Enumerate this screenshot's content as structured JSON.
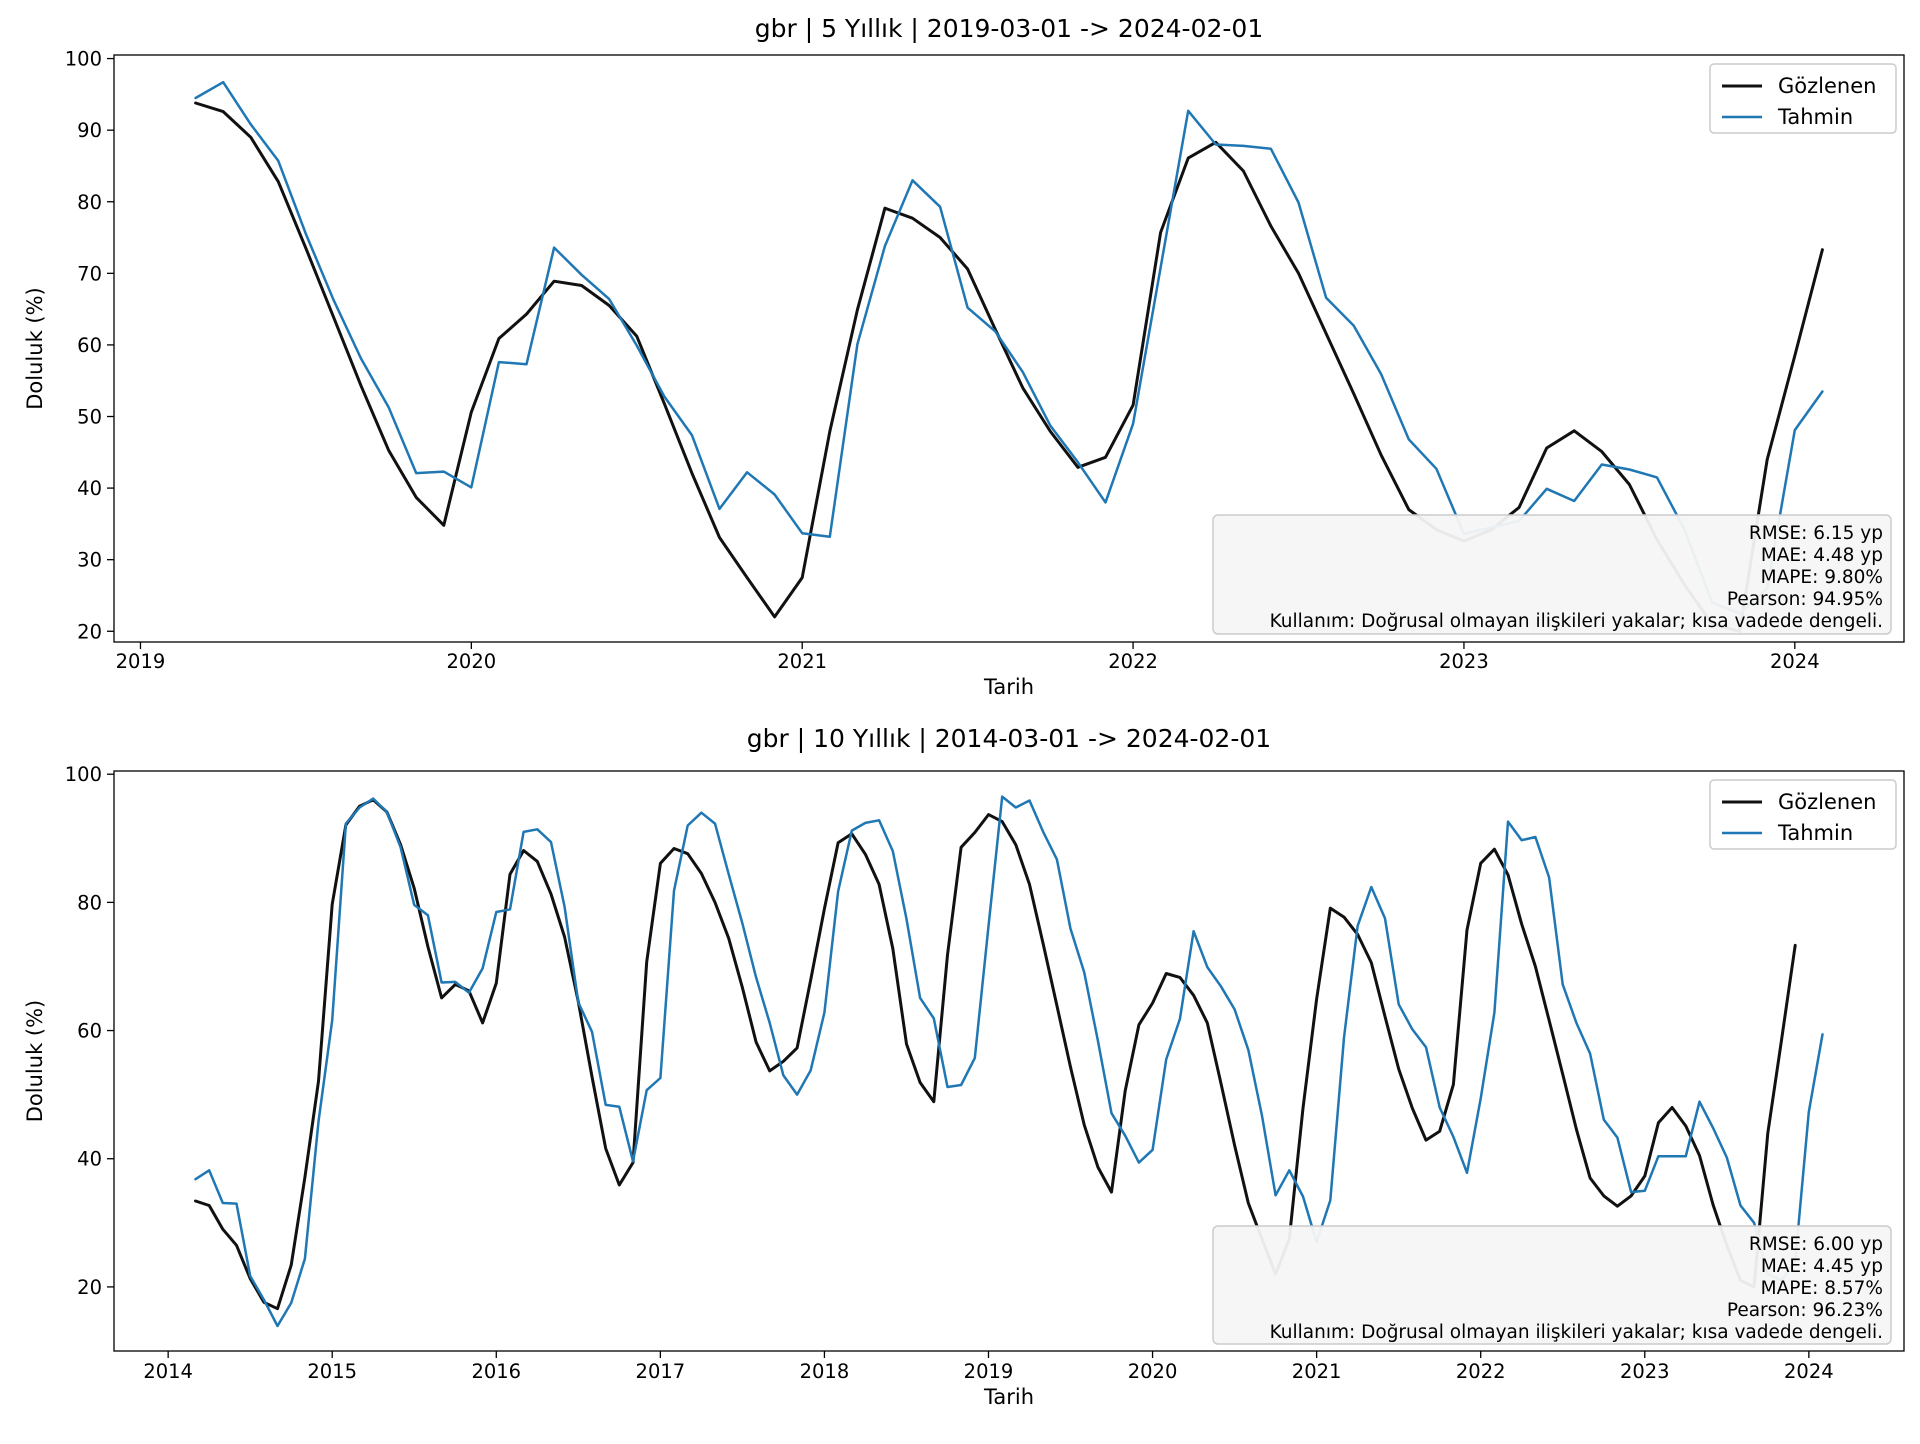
{
  "chart_data": [
    {
      "type": "line",
      "title": "gbr | 5 Yıllık | 2019-03-01 -> 2024-02-01",
      "xlabel": "Tarih",
      "ylabel": "Doluluk (%)",
      "start": "2019-03-01",
      "xlim": [
        2018.92,
        2024.33
      ],
      "ylim": [
        18.5,
        100.5
      ],
      "xticks": [
        2019,
        2020,
        2021,
        2022,
        2023,
        2024
      ],
      "xtick_labels": [
        "2019",
        "2020",
        "2021",
        "2022",
        "2023",
        "2024"
      ],
      "yticks": [
        20,
        30,
        40,
        50,
        60,
        70,
        80,
        90,
        100
      ],
      "ytick_labels": [
        "20",
        "30",
        "40",
        "50",
        "60",
        "70",
        "80",
        "90",
        "100"
      ],
      "legend": {
        "position": "upper right",
        "entries": [
          "Gözlenen",
          "Tahmin"
        ]
      },
      "series": [
        {
          "name": "Gözlenen",
          "color": "#111111",
          "values": [
            93.8,
            92.6,
            89.0,
            82.8,
            73.5,
            63.9,
            54.3,
            45.3,
            38.7,
            34.8,
            50.6,
            60.9,
            64.3,
            68.9,
            68.3,
            65.5,
            61.2,
            51.8,
            42.1,
            33.1,
            27.5,
            22.0,
            27.5,
            47.9,
            64.9,
            79.1,
            77.7,
            75.0,
            70.6,
            62.2,
            54.0,
            47.9,
            42.9,
            44.3,
            51.6,
            75.7,
            86.1,
            88.3,
            84.3,
            76.6,
            70.0,
            61.6,
            53.2,
            44.6,
            37.0,
            34.2,
            32.6,
            34.2,
            37.3,
            45.6,
            48.0,
            45.1,
            40.5,
            32.8,
            26.5,
            21.0,
            20.0,
            44.0,
            58.5,
            73.3
          ]
        },
        {
          "name": "Tahmin",
          "color": "#1f77b4",
          "values": [
            94.5,
            96.7,
            90.8,
            85.7,
            75.5,
            66.3,
            58.1,
            51.3,
            42.1,
            42.3,
            40.1,
            57.6,
            57.3,
            73.6,
            69.8,
            66.4,
            59.9,
            52.8,
            47.4,
            37.1,
            42.2,
            39.1,
            33.7,
            33.2,
            60.1,
            73.8,
            83.0,
            79.3,
            65.2,
            61.9,
            56.2,
            48.7,
            43.6,
            38.0,
            49.0,
            70.8,
            92.7,
            88.0,
            87.8,
            87.4,
            79.9,
            66.6,
            62.7,
            55.9,
            46.8,
            42.7,
            33.6,
            34.5,
            35.4,
            39.9,
            38.2,
            43.3,
            42.6,
            41.5,
            34.2,
            24.0,
            22.5,
            26.0,
            48.1,
            53.5
          ]
        }
      ],
      "stats": {
        "rmse": "RMSE: 6.15 yp",
        "mae": "MAE: 4.48 yp",
        "mape": "MAPE: 9.80%",
        "pearson": "Pearson: 94.95%",
        "usage": "Kullanım: Doğrusal olmayan ilişkileri yakalar; kısa vadede dengeli."
      }
    },
    {
      "type": "line",
      "title": "gbr | 10 Yıllık | 2014-03-01 -> 2024-02-01",
      "xlabel": "Tarih",
      "ylabel": "Doluluk (%)",
      "start": "2014-03-01",
      "xlim": [
        2013.67,
        2024.58
      ],
      "ylim": [
        10,
        100.5
      ],
      "xticks": [
        2014,
        2015,
        2016,
        2017,
        2018,
        2019,
        2020,
        2021,
        2022,
        2023,
        2024
      ],
      "xtick_labels": [
        "2014",
        "2015",
        "2016",
        "2017",
        "2018",
        "2019",
        "2020",
        "2021",
        "2022",
        "2023",
        "2024"
      ],
      "yticks": [
        20,
        40,
        60,
        80,
        100
      ],
      "ytick_labels": [
        "20",
        "40",
        "60",
        "80",
        "100"
      ],
      "legend": {
        "position": "upper right",
        "entries": [
          "Gözlenen",
          "Tahmin"
        ]
      },
      "series": [
        {
          "name": "Gözlenen",
          "color": "#111111",
          "values": [
            33.4,
            32.7,
            29.0,
            26.5,
            21.3,
            17.6,
            16.6,
            23.4,
            37.1,
            52.1,
            79.7,
            92.1,
            95.0,
            96.0,
            94.1,
            89.0,
            82.2,
            73.1,
            65.1,
            67.2,
            66.2,
            61.2,
            67.4,
            84.4,
            88.1,
            86.4,
            81.3,
            74.6,
            64.5,
            52.8,
            41.6,
            35.9,
            39.4,
            70.7,
            86.1,
            88.4,
            87.6,
            84.5,
            80.0,
            74.4,
            66.7,
            58.2,
            53.7,
            55.2,
            57.3,
            67.9,
            79.0,
            89.3,
            90.7,
            87.5,
            82.8,
            72.8,
            57.9,
            51.9,
            48.9,
            71.8,
            88.6,
            90.9,
            93.7,
            92.6,
            89.0,
            82.8,
            73.5,
            63.9,
            54.3,
            45.3,
            38.7,
            34.8,
            50.6,
            60.9,
            64.3,
            68.9,
            68.3,
            65.5,
            61.2,
            51.8,
            42.1,
            33.1,
            27.5,
            22.0,
            27.5,
            47.9,
            64.9,
            79.1,
            77.7,
            75.0,
            70.6,
            62.2,
            54.0,
            47.9,
            42.9,
            44.3,
            51.6,
            75.7,
            86.1,
            88.3,
            84.3,
            76.6,
            70.0,
            61.6,
            53.2,
            44.6,
            37.0,
            34.2,
            32.6,
            34.2,
            37.3,
            45.6,
            48.0,
            45.1,
            40.5,
            32.8,
            26.5,
            21.0,
            20.0,
            44.0,
            58.5,
            73.3
          ]
        },
        {
          "name": "Tahmin",
          "color": "#1f77b4",
          "values": [
            36.8,
            38.2,
            33.1,
            33.0,
            21.7,
            18.0,
            13.9,
            17.5,
            24.4,
            45.8,
            61.6,
            92.3,
            94.8,
            96.2,
            94.1,
            88.6,
            79.6,
            78.0,
            67.5,
            67.6,
            65.9,
            69.7,
            78.5,
            78.9,
            91.0,
            91.4,
            89.4,
            79.3,
            64.4,
            59.8,
            48.4,
            48.1,
            39.6,
            50.7,
            52.6,
            81.8,
            92.0,
            94.0,
            92.3,
            84.4,
            76.7,
            68.3,
            61.2,
            53.0,
            50.0,
            53.8,
            62.8,
            81.7,
            91.2,
            92.4,
            92.8,
            88.0,
            77.4,
            65.1,
            61.9,
            51.2,
            51.5,
            55.7,
            76.3,
            96.5,
            94.8,
            95.9,
            91.0,
            86.7,
            75.9,
            69.1,
            58.4,
            47.1,
            43.6,
            39.4,
            41.4,
            55.5,
            61.8,
            75.5,
            69.9,
            66.9,
            63.3,
            57.0,
            46.8,
            34.3,
            38.2,
            34.1,
            27.0,
            33.5,
            58.9,
            76.3,
            82.4,
            77.5,
            64.1,
            60.2,
            57.4,
            48.0,
            43.4,
            37.8,
            49.4,
            62.8,
            92.6,
            89.7,
            90.2,
            83.9,
            67.2,
            61.2,
            56.4,
            46.1,
            43.3,
            34.8,
            35.0,
            40.4,
            40.4,
            40.4,
            48.9,
            44.8,
            40.2,
            32.7,
            30.0,
            22.0,
            21.0,
            24.0,
            47.3,
            59.4
          ]
        }
      ],
      "stats": {
        "rmse": "RMSE: 6.00 yp",
        "mae": "MAE: 4.45 yp",
        "mape": "MAPE: 8.57%",
        "pearson": "Pearson: 96.23%",
        "usage": "Kullanım: Doğrusal olmayan ilişkileri yakalar; kısa vadede dengeli."
      }
    }
  ]
}
